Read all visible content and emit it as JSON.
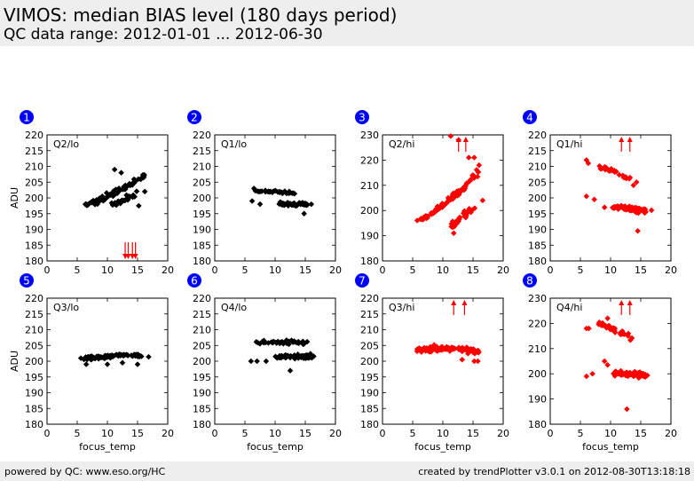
{
  "header": {
    "title": "VIMOS: median BIAS level (180 days period)",
    "subtitle": "QC data range: 2012-01-01 ... 2012-06-30"
  },
  "footer": {
    "left": "powered by QC: www.eso.org/HC",
    "right": "created by trendPlotter v3.0.1 on 2012-08-30T13:18:18"
  },
  "colors": {
    "black_series": "#000000",
    "red_series": "#ff0000",
    "badge": "#0000ff"
  },
  "chart_data": [
    {
      "type": "scatter",
      "badge": "1",
      "label": "Q2/lo",
      "color": "black",
      "xlim": [
        0,
        20
      ],
      "ylim": [
        180,
        220
      ],
      "xticks": [
        0,
        5,
        10,
        15,
        20
      ],
      "yticks": [
        180,
        185,
        190,
        195,
        200,
        205,
        210,
        215,
        220
      ],
      "ylabel": "ADU",
      "xlabel": "",
      "offscale_low": [
        13.2,
        14.4
      ],
      "offscale_high": [],
      "groups": [
        {
          "x": [
            6,
            7,
            8,
            9,
            10,
            11,
            12,
            13,
            14,
            15,
            16
          ],
          "y": [
            198,
            198,
            199,
            199.5,
            200.5,
            201.5,
            202.5,
            203.5,
            204.5,
            205.5,
            207
          ],
          "n": 80,
          "sx": 0.9,
          "sy": 0.9
        },
        {
          "x": [
            11,
            12,
            13,
            14,
            15
          ],
          "y": [
            198,
            198.8,
            199.5,
            200.5,
            201.5
          ],
          "n": 35,
          "sx": 0.8,
          "sy": 0.8
        }
      ],
      "points": [
        [
          11.2,
          209
        ],
        [
          12.3,
          208
        ],
        [
          16.2,
          202
        ],
        [
          15.2,
          197.5
        ]
      ]
    },
    {
      "type": "scatter",
      "badge": "2",
      "label": "Q1/lo",
      "color": "black",
      "xlim": [
        0,
        20
      ],
      "ylim": [
        180,
        220
      ],
      "xticks": [
        0,
        5,
        10,
        15,
        20
      ],
      "yticks": [
        180,
        185,
        190,
        195,
        200,
        205,
        210,
        215,
        220
      ],
      "ylabel": "",
      "xlabel": "",
      "offscale_low": [],
      "offscale_high": [],
      "groups": [
        {
          "x": [
            7,
            9,
            11,
            13
          ],
          "y": [
            202,
            202,
            202,
            201.5
          ],
          "n": 35,
          "sx": 1.4,
          "sy": 0.6
        },
        {
          "x": [
            11,
            12,
            13,
            14,
            15
          ],
          "y": [
            198,
            198,
            198,
            198,
            198
          ],
          "n": 60,
          "sx": 1.5,
          "sy": 0.8
        }
      ],
      "points": [
        [
          6.2,
          199
        ],
        [
          6.5,
          203
        ],
        [
          14.8,
          195
        ],
        [
          16,
          198
        ],
        [
          7.5,
          198
        ]
      ]
    },
    {
      "type": "scatter",
      "badge": "3",
      "label": "Q2/hi",
      "color": "red",
      "xlim": [
        0,
        20
      ],
      "ylim": [
        180,
        230
      ],
      "xticks": [
        0,
        5,
        10,
        15,
        20
      ],
      "yticks": [
        180,
        190,
        200,
        210,
        220,
        230
      ],
      "ylabel": "",
      "xlabel": "",
      "offscale_low": [],
      "offscale_high": [
        12.6,
        13.8
      ],
      "groups": [
        {
          "x": [
            6,
            7,
            8,
            9,
            10,
            11,
            12,
            13,
            14,
            15,
            16
          ],
          "y": [
            196,
            197,
            198.5,
            200.5,
            202,
            204,
            206,
            208,
            210.5,
            213,
            216
          ],
          "n": 90,
          "sx": 0.7,
          "sy": 0.6
        },
        {
          "x": [
            11.5,
            12,
            13,
            14,
            15
          ],
          "y": [
            193,
            195,
            197,
            199,
            201
          ],
          "n": 40,
          "sx": 0.8,
          "sy": 0.9
        }
      ],
      "points": [
        [
          11.3,
          229.5
        ],
        [
          12.6,
          228
        ],
        [
          14.3,
          221
        ],
        [
          15.2,
          221
        ],
        [
          16,
          218
        ],
        [
          16.6,
          204
        ],
        [
          11.8,
          191
        ]
      ]
    },
    {
      "type": "scatter",
      "badge": "4",
      "label": "Q1/hi",
      "color": "red",
      "xlim": [
        0,
        20
      ],
      "ylim": [
        180,
        220
      ],
      "xticks": [
        0,
        5,
        10,
        15,
        20
      ],
      "yticks": [
        180,
        185,
        190,
        195,
        200,
        205,
        210,
        215,
        220
      ],
      "ylabel": "",
      "xlabel": "",
      "offscale_low": [],
      "offscale_high": [
        11.8,
        13.2
      ],
      "groups": [
        {
          "x": [
            8,
            9,
            10,
            11,
            12,
            13
          ],
          "y": [
            209.5,
            209.5,
            209,
            208,
            207,
            206
          ],
          "n": 30,
          "sx": 0.8,
          "sy": 0.8
        },
        {
          "x": [
            11,
            12,
            13,
            14,
            15,
            16
          ],
          "y": [
            197,
            197,
            196.5,
            196.5,
            196,
            196
          ],
          "n": 110,
          "sx": 1.3,
          "sy": 1.0
        }
      ],
      "points": [
        [
          6,
          212
        ],
        [
          6.3,
          211
        ],
        [
          6,
          200.5
        ],
        [
          7.3,
          199.5
        ],
        [
          9,
          197
        ],
        [
          13.8,
          204
        ],
        [
          14.3,
          205
        ],
        [
          14.5,
          189.5
        ]
      ]
    },
    {
      "type": "scatter",
      "badge": "5",
      "label": "Q3/lo",
      "color": "black",
      "xlim": [
        0,
        20
      ],
      "ylim": [
        180,
        220
      ],
      "xticks": [
        0,
        5,
        10,
        15,
        20
      ],
      "yticks": [
        180,
        185,
        190,
        195,
        200,
        205,
        210,
        215,
        220
      ],
      "ylabel": "ADU",
      "xlabel": "focus_temp",
      "offscale_low": [],
      "offscale_high": [],
      "groups": [
        {
          "x": [
            6,
            8,
            10,
            12,
            14,
            16
          ],
          "y": [
            201,
            201.2,
            201.5,
            202,
            202,
            201.5
          ],
          "n": 95,
          "sx": 1.2,
          "sy": 0.7
        }
      ],
      "points": [
        [
          6.5,
          199
        ],
        [
          10,
          199
        ],
        [
          12.5,
          199.5
        ],
        [
          15,
          199
        ]
      ]
    },
    {
      "type": "scatter",
      "badge": "6",
      "label": "Q4/lo",
      "color": "black",
      "xlim": [
        0,
        20
      ],
      "ylim": [
        180,
        220
      ],
      "xticks": [
        0,
        5,
        10,
        15,
        20
      ],
      "yticks": [
        180,
        185,
        190,
        195,
        200,
        205,
        210,
        215,
        220
      ],
      "ylabel": "",
      "xlabel": "focus_temp",
      "offscale_low": [],
      "offscale_high": [],
      "groups": [
        {
          "x": [
            7,
            9,
            11,
            13,
            15
          ],
          "y": [
            206,
            206,
            206,
            206,
            206
          ],
          "n": 40,
          "sx": 1.3,
          "sy": 0.9
        },
        {
          "x": [
            10,
            11,
            12,
            13,
            14,
            15,
            16
          ],
          "y": [
            201.5,
            201.5,
            201.5,
            201.5,
            201.5,
            201.5,
            201.5
          ],
          "n": 70,
          "sx": 1.3,
          "sy": 0.9
        }
      ],
      "points": [
        [
          6,
          200
        ],
        [
          7,
          200
        ],
        [
          8.5,
          200
        ],
        [
          12.5,
          197
        ]
      ]
    },
    {
      "type": "scatter",
      "badge": "7",
      "label": "Q3/hi",
      "color": "red",
      "xlim": [
        0,
        20
      ],
      "ylim": [
        180,
        220
      ],
      "xticks": [
        0,
        5,
        10,
        15,
        20
      ],
      "yticks": [
        180,
        185,
        190,
        195,
        200,
        205,
        210,
        215,
        220
      ],
      "ylabel": "",
      "xlabel": "focus_temp",
      "offscale_low": [],
      "offscale_high": [
        11.8,
        13.6
      ],
      "groups": [
        {
          "x": [
            6,
            8,
            10,
            12,
            14,
            16
          ],
          "y": [
            203.5,
            204,
            204,
            204,
            203.5,
            203
          ],
          "n": 120,
          "sx": 1.4,
          "sy": 1.1
        }
      ],
      "points": [
        [
          15.2,
          200
        ],
        [
          15.8,
          200
        ],
        [
          13.2,
          200.5
        ]
      ]
    },
    {
      "type": "scatter",
      "badge": "8",
      "label": "Q4/hi",
      "color": "red",
      "xlim": [
        0,
        20
      ],
      "ylim": [
        180,
        230
      ],
      "xticks": [
        0,
        5,
        10,
        15,
        20
      ],
      "yticks": [
        180,
        190,
        200,
        210,
        220,
        230
      ],
      "ylabel": "",
      "xlabel": "focus_temp",
      "offscale_low": [],
      "offscale_high": [
        11.8,
        13.2
      ],
      "groups": [
        {
          "x": [
            8,
            9,
            10,
            11,
            12,
            13,
            14
          ],
          "y": [
            220,
            219,
            218,
            217,
            216,
            215,
            214
          ],
          "n": 35,
          "sx": 0.8,
          "sy": 1.2
        },
        {
          "x": [
            11,
            12,
            13,
            14,
            15,
            16
          ],
          "y": [
            200.5,
            200,
            200,
            200,
            199.5,
            199
          ],
          "n": 100,
          "sx": 1.3,
          "sy": 1.4
        }
      ],
      "points": [
        [
          6,
          218
        ],
        [
          6.4,
          218
        ],
        [
          6,
          199
        ],
        [
          7,
          200
        ],
        [
          9,
          205
        ],
        [
          9.5,
          203.5
        ],
        [
          12.7,
          186
        ],
        [
          9.5,
          222
        ]
      ]
    }
  ]
}
